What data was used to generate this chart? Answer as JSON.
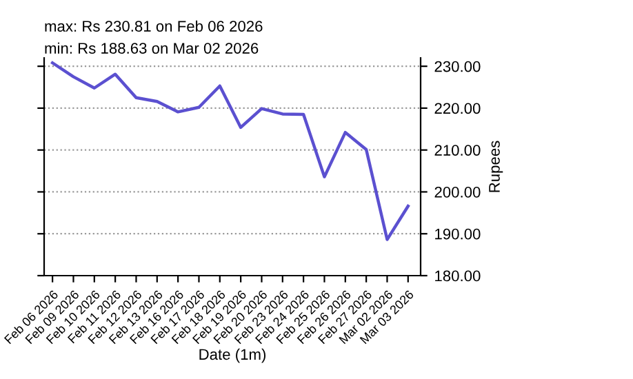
{
  "chart_data": {
    "type": "line",
    "xlabel": "Date (1m)",
    "ylabel": "Rupees",
    "annotations": [
      "max: Rs 230.81 on Feb 06 2026",
      "min: Rs 188.63 on Mar 02 2026"
    ],
    "categories": [
      "Feb 06 2026",
      "Feb 09 2026",
      "Feb 10 2026",
      "Feb 11 2026",
      "Feb 12 2026",
      "Feb 13 2026",
      "Feb 16 2026",
      "Feb 17 2026",
      "Feb 18 2026",
      "Feb 19 2026",
      "Feb 20 2026",
      "Feb 23 2026",
      "Feb 24 2026",
      "Feb 25 2026",
      "Feb 26 2026",
      "Feb 27 2026",
      "Mar 02 2026",
      "Mar 03 2026"
    ],
    "series": [
      {
        "color": "#5b50d0",
        "values": [
          230.81,
          227.5,
          224.8,
          228.1,
          222.5,
          221.6,
          219.1,
          220.2,
          225.3,
          215.4,
          219.9,
          218.6,
          218.5,
          203.6,
          214.2,
          210.1,
          188.63,
          196.6
        ]
      }
    ],
    "ylim": [
      180,
      232
    ],
    "yticks": [
      {
        "value": 180,
        "label": "180.00"
      },
      {
        "value": 190,
        "label": "190.00"
      },
      {
        "value": 200,
        "label": "200.00"
      },
      {
        "value": 210,
        "label": "210.00"
      },
      {
        "value": 220,
        "label": "220.00"
      },
      {
        "value": 230,
        "label": "230.00"
      }
    ],
    "grid": "y",
    "line_style": "solid",
    "marker": "none"
  }
}
